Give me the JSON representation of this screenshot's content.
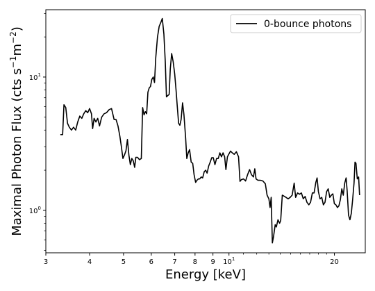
{
  "chart_data": {
    "type": "line",
    "title": "",
    "xlabel": "Energy [keV]",
    "ylabel_parts": [
      "Maximal Photon Flux (cts s",
      "−1",
      "m",
      "−2",
      ")"
    ],
    "xscale": "log",
    "yscale": "log",
    "xlim": [
      3.0,
      24.5
    ],
    "ylim": [
      0.48,
      32
    ],
    "xticks": [
      {
        "value": 3,
        "label": "3"
      },
      {
        "value": 4,
        "label": "4"
      },
      {
        "value": 5,
        "label": "5"
      },
      {
        "value": 6,
        "label": "6"
      },
      {
        "value": 7,
        "label": "7"
      },
      {
        "value": 8,
        "label": "8"
      },
      {
        "value": 9,
        "label": "9"
      },
      {
        "value": 10,
        "label": "10",
        "base": "10",
        "exp": "1"
      },
      {
        "value": 20,
        "label": "20"
      }
    ],
    "yticks": [
      {
        "value": 1,
        "label": "10",
        "base": "10",
        "exp": "0"
      },
      {
        "value": 10,
        "label": "10",
        "base": "10",
        "exp": "1"
      }
    ],
    "grid": false,
    "legend_position": "upper-right",
    "series": [
      {
        "name": "0-bounce photons",
        "color": "#000000",
        "points": [
          [
            3.3,
            3.7
          ],
          [
            3.35,
            3.7
          ],
          [
            3.38,
            6.2
          ],
          [
            3.42,
            5.9
          ],
          [
            3.46,
            4.5
          ],
          [
            3.5,
            4.2
          ],
          [
            3.55,
            4.0
          ],
          [
            3.6,
            4.2
          ],
          [
            3.65,
            4.0
          ],
          [
            3.7,
            4.6
          ],
          [
            3.75,
            5.1
          ],
          [
            3.8,
            4.9
          ],
          [
            3.85,
            5.3
          ],
          [
            3.9,
            5.6
          ],
          [
            3.95,
            5.4
          ],
          [
            4.0,
            5.8
          ],
          [
            4.05,
            5.3
          ],
          [
            4.08,
            4.1
          ],
          [
            4.12,
            4.9
          ],
          [
            4.17,
            4.6
          ],
          [
            4.22,
            4.9
          ],
          [
            4.27,
            4.3
          ],
          [
            4.33,
            5.0
          ],
          [
            4.4,
            5.3
          ],
          [
            4.47,
            5.4
          ],
          [
            4.55,
            5.7
          ],
          [
            4.62,
            5.8
          ],
          [
            4.7,
            4.8
          ],
          [
            4.76,
            4.8
          ],
          [
            4.82,
            4.3
          ],
          [
            4.88,
            3.6
          ],
          [
            4.93,
            3.0
          ],
          [
            4.98,
            2.45
          ],
          [
            5.03,
            2.6
          ],
          [
            5.08,
            2.8
          ],
          [
            5.13,
            3.4
          ],
          [
            5.18,
            2.6
          ],
          [
            5.23,
            2.2
          ],
          [
            5.28,
            2.45
          ],
          [
            5.33,
            2.35
          ],
          [
            5.38,
            2.1
          ],
          [
            5.42,
            2.5
          ],
          [
            5.48,
            2.5
          ],
          [
            5.55,
            2.4
          ],
          [
            5.62,
            2.45
          ],
          [
            5.67,
            5.9
          ],
          [
            5.72,
            5.2
          ],
          [
            5.77,
            5.5
          ],
          [
            5.82,
            5.3
          ],
          [
            5.87,
            7.7
          ],
          [
            5.92,
            8.3
          ],
          [
            5.97,
            8.5
          ],
          [
            6.02,
            9.6
          ],
          [
            6.08,
            10.0
          ],
          [
            6.13,
            9.1
          ],
          [
            6.18,
            14.0
          ],
          [
            6.25,
            20.0
          ],
          [
            6.32,
            24.0
          ],
          [
            6.4,
            26.0
          ],
          [
            6.45,
            27.5
          ],
          [
            6.52,
            21.0
          ],
          [
            6.58,
            13.0
          ],
          [
            6.63,
            7.1
          ],
          [
            6.7,
            7.3
          ],
          [
            6.75,
            7.4
          ],
          [
            6.8,
            11.5
          ],
          [
            6.86,
            15.0
          ],
          [
            6.93,
            13.0
          ],
          [
            7.0,
            10.5
          ],
          [
            7.06,
            8.0
          ],
          [
            7.12,
            6.0
          ],
          [
            7.18,
            4.5
          ],
          [
            7.24,
            4.35
          ],
          [
            7.3,
            4.8
          ],
          [
            7.37,
            6.4
          ],
          [
            7.44,
            5.2
          ],
          [
            7.52,
            3.5
          ],
          [
            7.58,
            2.45
          ],
          [
            7.65,
            2.7
          ],
          [
            7.72,
            2.85
          ],
          [
            7.8,
            2.3
          ],
          [
            7.88,
            2.25
          ],
          [
            7.95,
            1.85
          ],
          [
            8.03,
            1.62
          ],
          [
            8.1,
            1.68
          ],
          [
            8.18,
            1.72
          ],
          [
            8.25,
            1.72
          ],
          [
            8.33,
            1.78
          ],
          [
            8.41,
            1.75
          ],
          [
            8.5,
            1.95
          ],
          [
            8.58,
            2.0
          ],
          [
            8.66,
            1.9
          ],
          [
            8.75,
            2.15
          ],
          [
            8.84,
            2.3
          ],
          [
            8.93,
            2.48
          ],
          [
            9.02,
            2.48
          ],
          [
            9.12,
            2.2
          ],
          [
            9.22,
            2.45
          ],
          [
            9.32,
            2.45
          ],
          [
            9.42,
            2.7
          ],
          [
            9.52,
            2.52
          ],
          [
            9.62,
            2.7
          ],
          [
            9.72,
            2.52
          ],
          [
            9.8,
            2.02
          ],
          [
            9.9,
            2.52
          ],
          [
            10.0,
            2.65
          ],
          [
            10.1,
            2.78
          ],
          [
            10.22,
            2.7
          ],
          [
            10.35,
            2.63
          ],
          [
            10.5,
            2.75
          ],
          [
            10.65,
            2.52
          ],
          [
            10.75,
            1.65
          ],
          [
            10.85,
            1.7
          ],
          [
            11.0,
            1.72
          ],
          [
            11.15,
            1.66
          ],
          [
            11.3,
            1.85
          ],
          [
            11.45,
            2.02
          ],
          [
            11.6,
            1.85
          ],
          [
            11.75,
            1.78
          ],
          [
            11.85,
            2.05
          ],
          [
            11.95,
            1.72
          ],
          [
            12.1,
            1.68
          ],
          [
            12.3,
            1.68
          ],
          [
            12.5,
            1.66
          ],
          [
            12.7,
            1.58
          ],
          [
            12.85,
            1.3
          ],
          [
            13.0,
            1.22
          ],
          [
            13.1,
            1.05
          ],
          [
            13.2,
            1.25
          ],
          [
            13.3,
            0.57
          ],
          [
            13.4,
            0.63
          ],
          [
            13.55,
            0.78
          ],
          [
            13.65,
            0.75
          ],
          [
            13.8,
            0.85
          ],
          [
            13.95,
            0.8
          ],
          [
            14.05,
            0.84
          ],
          [
            14.2,
            1.3
          ],
          [
            14.35,
            1.28
          ],
          [
            14.55,
            1.25
          ],
          [
            14.75,
            1.22
          ],
          [
            14.95,
            1.25
          ],
          [
            15.15,
            1.3
          ],
          [
            15.35,
            1.6
          ],
          [
            15.5,
            1.25
          ],
          [
            15.7,
            1.35
          ],
          [
            15.9,
            1.32
          ],
          [
            16.1,
            1.35
          ],
          [
            16.3,
            1.22
          ],
          [
            16.5,
            1.27
          ],
          [
            16.7,
            1.15
          ],
          [
            16.9,
            1.1
          ],
          [
            17.1,
            1.15
          ],
          [
            17.3,
            1.35
          ],
          [
            17.5,
            1.35
          ],
          [
            17.7,
            1.62
          ],
          [
            17.85,
            1.75
          ],
          [
            18.0,
            1.38
          ],
          [
            18.2,
            1.22
          ],
          [
            18.4,
            1.25
          ],
          [
            18.6,
            1.1
          ],
          [
            18.8,
            1.15
          ],
          [
            19.0,
            1.38
          ],
          [
            19.2,
            1.45
          ],
          [
            19.4,
            1.25
          ],
          [
            19.6,
            1.3
          ],
          [
            19.8,
            1.33
          ],
          [
            20.0,
            1.12
          ],
          [
            20.2,
            1.1
          ],
          [
            20.4,
            1.05
          ],
          [
            20.6,
            1.08
          ],
          [
            20.8,
            1.2
          ],
          [
            21.0,
            1.45
          ],
          [
            21.2,
            1.3
          ],
          [
            21.4,
            1.6
          ],
          [
            21.6,
            1.75
          ],
          [
            21.75,
            1.4
          ],
          [
            21.95,
            0.92
          ],
          [
            22.15,
            0.85
          ],
          [
            22.35,
            0.95
          ],
          [
            22.55,
            1.2
          ],
          [
            22.75,
            1.6
          ],
          [
            22.9,
            2.3
          ],
          [
            23.05,
            2.25
          ],
          [
            23.25,
            1.72
          ],
          [
            23.45,
            1.78
          ],
          [
            23.6,
            1.3
          ]
        ]
      }
    ]
  }
}
